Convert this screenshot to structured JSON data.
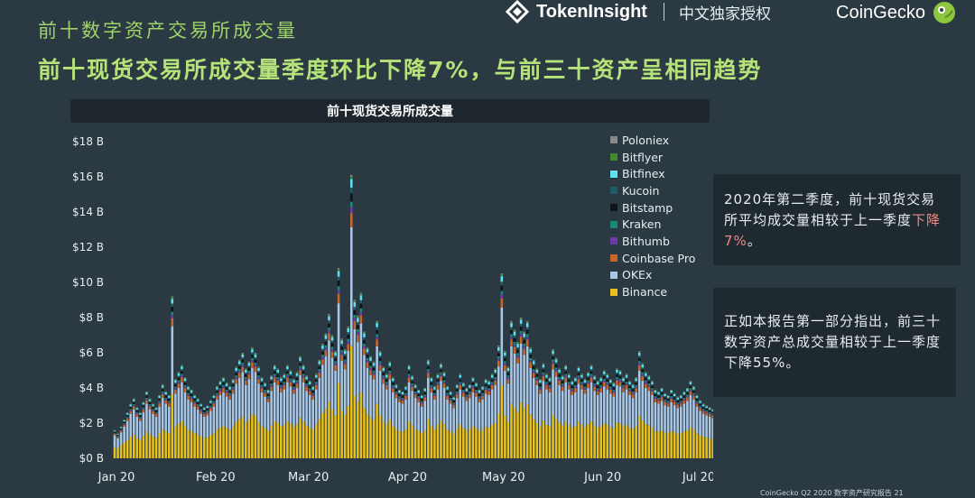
{
  "header": {
    "section_label": "前十数字资产交易所成交量",
    "headline": "前十现货交易所成交量季度环比下降7%，与前三十资产呈相同趋势",
    "tokeninsight_name": "TokenInsight",
    "license_text": "中文独家授权",
    "coingecko_name": "CoinGecko"
  },
  "notes": {
    "note1_text": "2020年第二季度，前十现货交易所平均成交量相较于上一季度",
    "note1_highlight": "下降7%",
    "note1_end": "。",
    "note2_text": "正如本报告第一部分指出，前三十数字资产总成交量相较于上一季度下降55%。"
  },
  "footer": {
    "text": "CoinGecko Q2 2020 数字资产研究报告    21"
  },
  "colors": {
    "background": "#2b3a42",
    "title_green": "#9ed46a",
    "highlight_red": "#f08a86"
  },
  "chart_data": {
    "type": "bar",
    "stacked": true,
    "title": "前十现货交易所成交量",
    "xlabel": "",
    "ylabel": "",
    "ylim": [
      0,
      18
    ],
    "y_ticks": [
      0,
      2,
      4,
      6,
      8,
      10,
      12,
      14,
      16,
      18
    ],
    "y_tick_labels": [
      "$0 B",
      "$2 B",
      "$4 B",
      "$6 B",
      "$8 B",
      "$10 B",
      "$12 B",
      "$14 B",
      "$16 B",
      "$18 B"
    ],
    "x_tick_labels": [
      "Jan 20",
      "Feb 20",
      "Mar 20",
      "Apr 20",
      "May 20",
      "Jun 20",
      "Jul 20"
    ],
    "x_tick_day_index": [
      0,
      31,
      60,
      91,
      121,
      152,
      182
    ],
    "grid": false,
    "legend_position": "top-right",
    "series_order_bottom_to_top": [
      "Binance",
      "OKEx",
      "Coinbase Pro",
      "Bithumb",
      "Kraken",
      "Bitstamp",
      "Kucoin",
      "Bitfinex",
      "Bitflyer",
      "Poloniex"
    ],
    "series": [
      {
        "name": "Poloniex",
        "color": "#8a8a8a",
        "share": 0.006
      },
      {
        "name": "Bitflyer",
        "color": "#3f8a2f",
        "share": 0.008
      },
      {
        "name": "Bitfinex",
        "color": "#5ee0f0",
        "share": 0.03
      },
      {
        "name": "Kucoin",
        "color": "#1f5c66",
        "share": 0.02
      },
      {
        "name": "Bitstamp",
        "color": "#0e1418",
        "share": 0.03
      },
      {
        "name": "Kraken",
        "color": "#178a7a",
        "share": 0.02
      },
      {
        "name": "Bithumb",
        "color": "#6a3aa8",
        "share": 0.02
      },
      {
        "name": "Coinbase Pro",
        "color": "#c8652a",
        "share": 0.05
      },
      {
        "name": "OKEx",
        "color": "#a9c6e6",
        "share": 0.42
      },
      {
        "name": "Binance",
        "color": "#e8c11a",
        "share": 0.396
      }
    ],
    "daily_totals": [
      1.6,
      1.4,
      1.8,
      2.2,
      2.6,
      3.1,
      3.4,
      2.9,
      2.6,
      3.2,
      3.8,
      3.4,
      3.1,
      2.9,
      3.6,
      4.2,
      3.8,
      3.6,
      9.2,
      4.5,
      4.9,
      5.3,
      4.6,
      4.1,
      3.9,
      3.6,
      3.4,
      3.1,
      2.9,
      3.0,
      3.3,
      3.6,
      4.1,
      4.4,
      4.6,
      4.3,
      4.1,
      4.5,
      5.2,
      5.6,
      6.0,
      5.1,
      5.5,
      6.3,
      6.0,
      5.2,
      4.6,
      4.3,
      3.9,
      4.7,
      5.3,
      5.1,
      4.6,
      4.8,
      5.3,
      5.0,
      4.5,
      4.9,
      5.8,
      5.3,
      4.7,
      4.4,
      4.1,
      4.8,
      5.6,
      6.5,
      7.1,
      8.2,
      7.0,
      6.1,
      10.8,
      6.8,
      6.2,
      7.5,
      16.1,
      9.0,
      8.1,
      9.4,
      7.2,
      6.3,
      5.8,
      5.5,
      7.8,
      6.1,
      5.2,
      4.8,
      5.5,
      4.6,
      4.2,
      3.9,
      3.8,
      4.1,
      5.3,
      4.7,
      4.2,
      3.9,
      3.6,
      4.0,
      5.6,
      4.6,
      4.1,
      4.8,
      5.4,
      4.9,
      4.1,
      3.8,
      3.5,
      4.2,
      4.8,
      4.3,
      4.0,
      4.2,
      4.6,
      4.3,
      3.9,
      4.1,
      4.5,
      4.4,
      4.8,
      5.1,
      6.4,
      10.5,
      6.1,
      5.2,
      7.8,
      7.3,
      6.6,
      8.0,
      7.2,
      7.8,
      6.3,
      5.6,
      5.1,
      4.5,
      5.4,
      4.8,
      4.6,
      6.2,
      5.7,
      5.1,
      4.7,
      5.3,
      4.8,
      4.4,
      4.6,
      5.2,
      4.8,
      4.5,
      4.9,
      5.3,
      4.7,
      4.4,
      4.6,
      5.0,
      4.8,
      4.5,
      4.3,
      5.1,
      5.0,
      4.6,
      4.8,
      4.4,
      4.2,
      4.6,
      6.1,
      5.4,
      4.9,
      4.7,
      4.4,
      3.9,
      3.8,
      4.0,
      3.7,
      3.6,
      3.9,
      3.7,
      3.5,
      3.6,
      3.8,
      4.0,
      4.4,
      4.1,
      3.6,
      3.3,
      3.1,
      3.0,
      2.9,
      2.8
    ]
  }
}
